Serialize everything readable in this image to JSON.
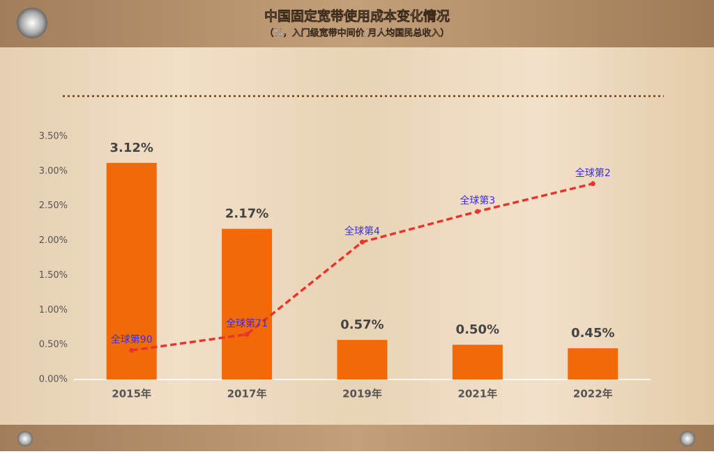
{
  "chart_data": {
    "type": "bar",
    "title": "中国固定宽带使用成本变化情况",
    "subtitle": "（%，入门级宽带中间价/月人均国民总收入）",
    "categories": [
      "2015年",
      "2017年",
      "2019年",
      "2021年",
      "2022年"
    ],
    "series": [
      {
        "type": "bar",
        "color": "#f06a0a",
        "values": [
          3.12,
          2.17,
          0.57,
          0.5,
          0.45
        ],
        "value_labels": [
          "3.12%",
          "2.17%",
          "0.57%",
          "0.50%",
          "0.45%"
        ]
      },
      {
        "type": "line",
        "color": "#e8342a",
        "dashed": true,
        "values": [
          0.42,
          0.65,
          1.98,
          2.42,
          2.82
        ],
        "annotations": [
          "全球第90",
          "全球第71",
          "全球第4",
          "全球第3",
          "全球第2"
        ],
        "annotation_color": "#3a2cf0"
      }
    ],
    "ylim": [
      0,
      3.5
    ],
    "yticks": [
      {
        "value": 0,
        "label": "0.00%"
      },
      {
        "value": 0.5,
        "label": "0.50%"
      },
      {
        "value": 1,
        "label": "1.00%"
      },
      {
        "value": 1.5,
        "label": "1.50%"
      },
      {
        "value": 2,
        "label": "2.00%"
      },
      {
        "value": 2.5,
        "label": "2.50%"
      },
      {
        "value": 3,
        "label": "3.00%"
      },
      {
        "value": 3.5,
        "label": "3.50%"
      }
    ]
  }
}
